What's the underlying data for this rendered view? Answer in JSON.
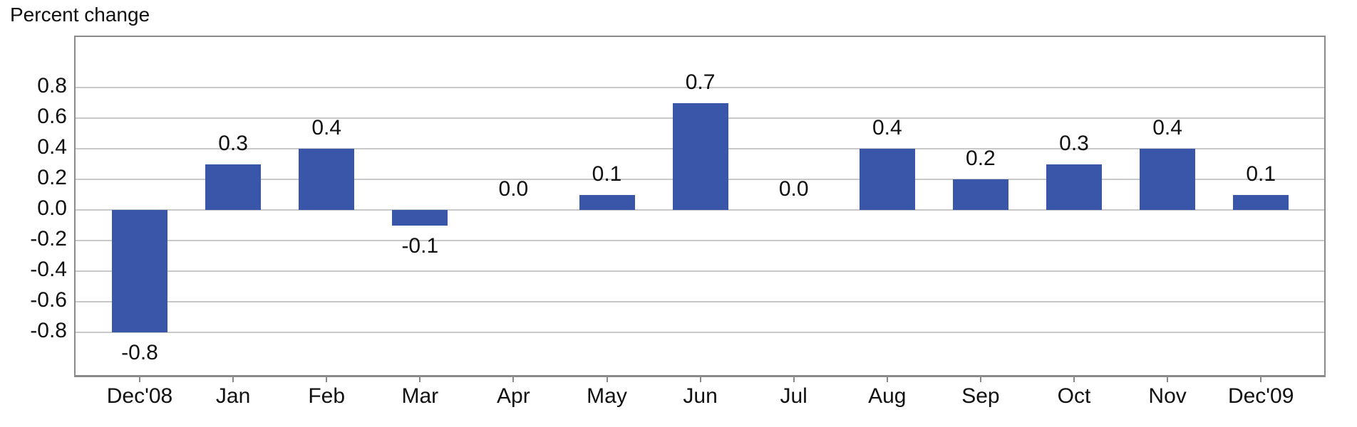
{
  "title": "Percent change",
  "colors": {
    "bar": "#3a56a8",
    "gridline": "#c9c9c9",
    "plot_border": "#8a8a8a",
    "text": "#111111",
    "background": "#ffffff"
  },
  "chart_data": {
    "type": "bar",
    "title": "Percent change",
    "xlabel": "",
    "ylabel": "Percent change",
    "categories": [
      "Dec'08",
      "Jan",
      "Feb",
      "Mar",
      "Apr",
      "May",
      "Jun",
      "Jul",
      "Aug",
      "Sep",
      "Oct",
      "Nov",
      "Dec'09"
    ],
    "values": [
      -0.8,
      0.3,
      0.4,
      -0.1,
      0.0,
      0.1,
      0.7,
      0.0,
      0.4,
      0.2,
      0.3,
      0.4,
      0.1
    ],
    "data_labels": [
      "-0.8",
      "0.3",
      "0.4",
      "-0.1",
      "0.0",
      "0.1",
      "0.7",
      "0.0",
      "0.4",
      "0.2",
      "0.3",
      "0.4",
      "0.1"
    ],
    "y_ticks": [
      0.8,
      0.6,
      0.4,
      0.2,
      0.0,
      -0.2,
      -0.4,
      -0.6,
      -0.8
    ],
    "y_tick_labels": [
      "0.8",
      "0.6",
      "0.4",
      "0.2",
      "0.0",
      "-0.2",
      "-0.4",
      "-0.6",
      "-0.8"
    ],
    "ylim": [
      -1.09,
      1.13
    ],
    "grid": true,
    "legend": false,
    "data_labels_position": "outside-end"
  }
}
